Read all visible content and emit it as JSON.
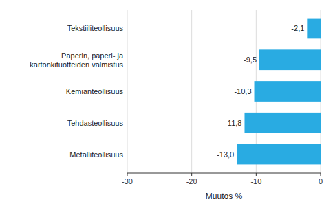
{
  "chart_data": {
    "type": "bar",
    "orientation": "horizontal",
    "categories": [
      "Metalliteollisuus",
      "Tehdasteollisuus",
      "Kemianteollisuus",
      "Paperin, paperi- ja kartonkituotteiden valmistus",
      "Tekstiiliteollisuus"
    ],
    "values": [
      -13.0,
      -11.8,
      -10.3,
      -9.5,
      -2.1
    ],
    "value_labels": [
      "-13,0",
      "-11,8",
      "-10,3",
      "-9,5",
      "-2,1"
    ],
    "data_labels": true,
    "color": "#29abe2",
    "xlim": [
      -30,
      0
    ],
    "xticks": [
      -30,
      -20,
      -10,
      0
    ],
    "xlabel": "Muutos %",
    "grid": true
  }
}
